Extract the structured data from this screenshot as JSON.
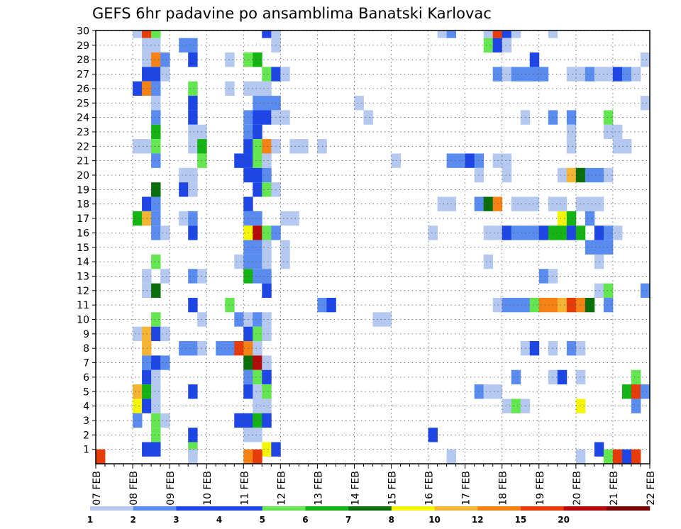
{
  "chart_data": {
    "type": "heatmap",
    "title": "GEFS 6hr padavine po ansamblima Banatski Karlovac",
    "x_tick_labels": [
      "07 FEB",
      "08 FEB",
      "09 FEB",
      "10 FEB",
      "11 FEB",
      "12 FEB",
      "13 FEB",
      "14 FEB",
      "15 FEB",
      "16 FEB",
      "17 FEB",
      "18 FEB",
      "19 FEB",
      "20 FEB",
      "21 FEB",
      "22 FEB"
    ],
    "y_tick_labels": [
      "1",
      "2",
      "3",
      "4",
      "5",
      "6",
      "7",
      "8",
      "9",
      "10",
      "11",
      "12",
      "13",
      "14",
      "15",
      "16",
      "17",
      "18",
      "19",
      "20",
      "21",
      "22",
      "23",
      "24",
      "25",
      "26",
      "27",
      "28",
      "29",
      "30"
    ],
    "x_steps_per_day": 4,
    "x_total_steps": 60,
    "y_rows": 30,
    "grid": true,
    "legend_position": "bottom",
    "colorbar": {
      "labels": [
        "1",
        "2",
        "3",
        "4",
        "5",
        "6",
        "7",
        "8",
        "10",
        "12",
        "15",
        "20"
      ],
      "colors": [
        "#b4c8f0",
        "#5a8cf0",
        "#1e46e6",
        "#1e46e6",
        "#64e650",
        "#14b414",
        "#0a6e0a",
        "#f5f50a",
        "#f5b432",
        "#f58214",
        "#e63c0a",
        "#b40a0a",
        "#780000"
      ]
    },
    "cells": [
      [
        4,
        30,
        1
      ],
      [
        5,
        30,
        15
      ],
      [
        6,
        30,
        5
      ],
      [
        18,
        30,
        3
      ],
      [
        19,
        30,
        1
      ],
      [
        37,
        30,
        1
      ],
      [
        38,
        30,
        2
      ],
      [
        42,
        30,
        1
      ],
      [
        43,
        30,
        15
      ],
      [
        44,
        30,
        3
      ],
      [
        45,
        30,
        1
      ],
      [
        49,
        30,
        1
      ],
      [
        5,
        29,
        1
      ],
      [
        6,
        29,
        1
      ],
      [
        9,
        29,
        2
      ],
      [
        10,
        29,
        2
      ],
      [
        19,
        29,
        1
      ],
      [
        42,
        29,
        5
      ],
      [
        43,
        29,
        3
      ],
      [
        44,
        29,
        1
      ],
      [
        5,
        28,
        1
      ],
      [
        6,
        28,
        12
      ],
      [
        7,
        28,
        2
      ],
      [
        10,
        28,
        3
      ],
      [
        14,
        28,
        1
      ],
      [
        16,
        28,
        5
      ],
      [
        17,
        28,
        6
      ],
      [
        47,
        28,
        3
      ],
      [
        59,
        28,
        1
      ],
      [
        5,
        27,
        3
      ],
      [
        6,
        27,
        3
      ],
      [
        7,
        27,
        1
      ],
      [
        18,
        27,
        5
      ],
      [
        19,
        27,
        3
      ],
      [
        20,
        27,
        1
      ],
      [
        43,
        27,
        2
      ],
      [
        44,
        27,
        1
      ],
      [
        45,
        27,
        2
      ],
      [
        46,
        27,
        2
      ],
      [
        47,
        27,
        2
      ],
      [
        48,
        27,
        2
      ],
      [
        51,
        27,
        1
      ],
      [
        52,
        27,
        1
      ],
      [
        53,
        27,
        2
      ],
      [
        54,
        27,
        1
      ],
      [
        55,
        27,
        1
      ],
      [
        56,
        27,
        3
      ],
      [
        57,
        27,
        2
      ],
      [
        58,
        27,
        1
      ],
      [
        4,
        26,
        3
      ],
      [
        5,
        26,
        12
      ],
      [
        6,
        26,
        2
      ],
      [
        10,
        26,
        5
      ],
      [
        14,
        26,
        1
      ],
      [
        16,
        26,
        1
      ],
      [
        17,
        26,
        1
      ],
      [
        18,
        26,
        1
      ],
      [
        6,
        25,
        1
      ],
      [
        10,
        25,
        3
      ],
      [
        17,
        25,
        2
      ],
      [
        18,
        25,
        2
      ],
      [
        19,
        25,
        2
      ],
      [
        28,
        25,
        1
      ],
      [
        59,
        25,
        1
      ],
      [
        6,
        24,
        2
      ],
      [
        10,
        24,
        3
      ],
      [
        16,
        24,
        2
      ],
      [
        17,
        24,
        3
      ],
      [
        18,
        24,
        3
      ],
      [
        19,
        24,
        1
      ],
      [
        20,
        24,
        1
      ],
      [
        29,
        24,
        1
      ],
      [
        46,
        24,
        1
      ],
      [
        49,
        24,
        2
      ],
      [
        51,
        24,
        2
      ],
      [
        55,
        24,
        5
      ],
      [
        6,
        23,
        6
      ],
      [
        10,
        23,
        1
      ],
      [
        11,
        23,
        1
      ],
      [
        16,
        23,
        2
      ],
      [
        17,
        23,
        3
      ],
      [
        51,
        23,
        1
      ],
      [
        55,
        23,
        1
      ],
      [
        56,
        23,
        1
      ],
      [
        4,
        22,
        1
      ],
      [
        5,
        22,
        1
      ],
      [
        6,
        22,
        5
      ],
      [
        10,
        22,
        1
      ],
      [
        11,
        22,
        6
      ],
      [
        16,
        22,
        3
      ],
      [
        17,
        22,
        5
      ],
      [
        18,
        22,
        12
      ],
      [
        19,
        22,
        1
      ],
      [
        21,
        22,
        1
      ],
      [
        22,
        22,
        1
      ],
      [
        24,
        22,
        1
      ],
      [
        51,
        22,
        1
      ],
      [
        56,
        22,
        1
      ],
      [
        57,
        22,
        1
      ],
      [
        6,
        21,
        2
      ],
      [
        11,
        21,
        5
      ],
      [
        15,
        21,
        3
      ],
      [
        16,
        21,
        3
      ],
      [
        17,
        21,
        5
      ],
      [
        18,
        21,
        1
      ],
      [
        32,
        21,
        1
      ],
      [
        38,
        21,
        2
      ],
      [
        39,
        21,
        2
      ],
      [
        40,
        21,
        3
      ],
      [
        41,
        21,
        2
      ],
      [
        43,
        21,
        1
      ],
      [
        44,
        21,
        1
      ],
      [
        9,
        20,
        1
      ],
      [
        10,
        20,
        1
      ],
      [
        16,
        20,
        3
      ],
      [
        17,
        20,
        3
      ],
      [
        18,
        20,
        2
      ],
      [
        41,
        20,
        1
      ],
      [
        44,
        20,
        1
      ],
      [
        50,
        20,
        1
      ],
      [
        51,
        20,
        11
      ],
      [
        52,
        20,
        7
      ],
      [
        53,
        20,
        2
      ],
      [
        54,
        20,
        2
      ],
      [
        55,
        20,
        1
      ],
      [
        6,
        19,
        7
      ],
      [
        9,
        19,
        3
      ],
      [
        10,
        19,
        1
      ],
      [
        17,
        19,
        3
      ],
      [
        18,
        19,
        5
      ],
      [
        19,
        19,
        1
      ],
      [
        5,
        18,
        3
      ],
      [
        6,
        18,
        2
      ],
      [
        16,
        18,
        3
      ],
      [
        37,
        18,
        1
      ],
      [
        38,
        18,
        1
      ],
      [
        41,
        18,
        2
      ],
      [
        42,
        18,
        7
      ],
      [
        43,
        18,
        12
      ],
      [
        45,
        18,
        1
      ],
      [
        46,
        18,
        1
      ],
      [
        47,
        18,
        1
      ],
      [
        49,
        18,
        1
      ],
      [
        50,
        18,
        1
      ],
      [
        52,
        18,
        1
      ],
      [
        53,
        18,
        1
      ],
      [
        54,
        18,
        1
      ],
      [
        4,
        17,
        6
      ],
      [
        5,
        17,
        11
      ],
      [
        6,
        17,
        2
      ],
      [
        9,
        17,
        1
      ],
      [
        10,
        17,
        2
      ],
      [
        16,
        17,
        2
      ],
      [
        17,
        17,
        2
      ],
      [
        20,
        17,
        1
      ],
      [
        21,
        17,
        1
      ],
      [
        50,
        17,
        9
      ],
      [
        51,
        17,
        6
      ],
      [
        53,
        17,
        2
      ],
      [
        6,
        16,
        2
      ],
      [
        7,
        16,
        1
      ],
      [
        10,
        16,
        3
      ],
      [
        16,
        16,
        9
      ],
      [
        17,
        16,
        20
      ],
      [
        18,
        16,
        5
      ],
      [
        19,
        16,
        2
      ],
      [
        36,
        16,
        1
      ],
      [
        42,
        16,
        1
      ],
      [
        43,
        16,
        1
      ],
      [
        44,
        16,
        3
      ],
      [
        45,
        16,
        2
      ],
      [
        46,
        16,
        2
      ],
      [
        47,
        16,
        2
      ],
      [
        48,
        16,
        3
      ],
      [
        49,
        16,
        6
      ],
      [
        50,
        16,
        6
      ],
      [
        51,
        16,
        3
      ],
      [
        52,
        16,
        6
      ],
      [
        54,
        16,
        3
      ],
      [
        55,
        16,
        2
      ],
      [
        56,
        16,
        1
      ],
      [
        16,
        15,
        2
      ],
      [
        17,
        15,
        2
      ],
      [
        18,
        15,
        1
      ],
      [
        20,
        15,
        1
      ],
      [
        53,
        15,
        2
      ],
      [
        54,
        15,
        2
      ],
      [
        55,
        15,
        2
      ],
      [
        6,
        14,
        5
      ],
      [
        15,
        14,
        1
      ],
      [
        16,
        14,
        2
      ],
      [
        17,
        14,
        2
      ],
      [
        18,
        14,
        1
      ],
      [
        20,
        14,
        1
      ],
      [
        42,
        14,
        1
      ],
      [
        54,
        14,
        1
      ],
      [
        5,
        13,
        1
      ],
      [
        7,
        13,
        1
      ],
      [
        10,
        13,
        2
      ],
      [
        11,
        13,
        1
      ],
      [
        16,
        13,
        6
      ],
      [
        17,
        13,
        2
      ],
      [
        18,
        13,
        2
      ],
      [
        48,
        13,
        2
      ],
      [
        49,
        13,
        1
      ],
      [
        5,
        12,
        1
      ],
      [
        6,
        12,
        7
      ],
      [
        18,
        12,
        3
      ],
      [
        54,
        12,
        1
      ],
      [
        55,
        12,
        5
      ],
      [
        59,
        12,
        2
      ],
      [
        10,
        11,
        3
      ],
      [
        14,
        11,
        5
      ],
      [
        24,
        11,
        2
      ],
      [
        25,
        11,
        3
      ],
      [
        43,
        11,
        1
      ],
      [
        44,
        11,
        2
      ],
      [
        45,
        11,
        2
      ],
      [
        46,
        11,
        2
      ],
      [
        47,
        11,
        5
      ],
      [
        48,
        11,
        12
      ],
      [
        49,
        11,
        12
      ],
      [
        50,
        11,
        11
      ],
      [
        51,
        11,
        15
      ],
      [
        52,
        11,
        12
      ],
      [
        53,
        11,
        7
      ],
      [
        55,
        11,
        2
      ],
      [
        6,
        10,
        5
      ],
      [
        11,
        10,
        1
      ],
      [
        15,
        10,
        2
      ],
      [
        16,
        10,
        1
      ],
      [
        17,
        10,
        2
      ],
      [
        18,
        10,
        1
      ],
      [
        30,
        10,
        1
      ],
      [
        31,
        10,
        1
      ],
      [
        4,
        9,
        1
      ],
      [
        5,
        9,
        10
      ],
      [
        6,
        9,
        3
      ],
      [
        7,
        9,
        1
      ],
      [
        16,
        9,
        3
      ],
      [
        17,
        9,
        5
      ],
      [
        18,
        9,
        1
      ],
      [
        5,
        8,
        10
      ],
      [
        9,
        8,
        2
      ],
      [
        10,
        8,
        2
      ],
      [
        11,
        8,
        1
      ],
      [
        13,
        8,
        2
      ],
      [
        14,
        8,
        2
      ],
      [
        15,
        8,
        15
      ],
      [
        16,
        8,
        12
      ],
      [
        17,
        8,
        1
      ],
      [
        46,
        8,
        1
      ],
      [
        47,
        8,
        3
      ],
      [
        49,
        8,
        1
      ],
      [
        51,
        8,
        2
      ],
      [
        52,
        8,
        1
      ],
      [
        5,
        7,
        2
      ],
      [
        6,
        7,
        3
      ],
      [
        7,
        7,
        2
      ],
      [
        16,
        7,
        7
      ],
      [
        17,
        7,
        20
      ],
      [
        18,
        7,
        1
      ],
      [
        5,
        6,
        3
      ],
      [
        6,
        6,
        1
      ],
      [
        16,
        6,
        2
      ],
      [
        17,
        6,
        5
      ],
      [
        18,
        6,
        3
      ],
      [
        45,
        6,
        2
      ],
      [
        49,
        6,
        1
      ],
      [
        50,
        6,
        3
      ],
      [
        52,
        6,
        1
      ],
      [
        58,
        6,
        5
      ],
      [
        4,
        5,
        10
      ],
      [
        5,
        5,
        6
      ],
      [
        6,
        5,
        1
      ],
      [
        10,
        5,
        3
      ],
      [
        16,
        5,
        3
      ],
      [
        17,
        5,
        1
      ],
      [
        18,
        5,
        5
      ],
      [
        41,
        5,
        2
      ],
      [
        42,
        5,
        1
      ],
      [
        43,
        5,
        1
      ],
      [
        57,
        5,
        6
      ],
      [
        58,
        5,
        15
      ],
      [
        59,
        5,
        2
      ],
      [
        4,
        4,
        8
      ],
      [
        5,
        4,
        3
      ],
      [
        6,
        4,
        1
      ],
      [
        17,
        4,
        1
      ],
      [
        18,
        4,
        1
      ],
      [
        44,
        4,
        1
      ],
      [
        45,
        4,
        5
      ],
      [
        46,
        4,
        1
      ],
      [
        52,
        4,
        8
      ],
      [
        58,
        4,
        2
      ],
      [
        4,
        3,
        2
      ],
      [
        6,
        3,
        5
      ],
      [
        7,
        3,
        1
      ],
      [
        15,
        3,
        3
      ],
      [
        16,
        3,
        3
      ],
      [
        17,
        3,
        6
      ],
      [
        18,
        3,
        3
      ],
      [
        6,
        2,
        5
      ],
      [
        10,
        2,
        3
      ],
      [
        16,
        2,
        1
      ],
      [
        17,
        2,
        1
      ],
      [
        36,
        2,
        3
      ],
      [
        5,
        1,
        3
      ],
      [
        6,
        1,
        3
      ],
      [
        10,
        1,
        5
      ],
      [
        18,
        1,
        8
      ],
      [
        19,
        1,
        3
      ],
      [
        54,
        1,
        3
      ],
      [
        0,
        0.5,
        15
      ],
      [
        10,
        0.5,
        1
      ],
      [
        16,
        0.5,
        12
      ],
      [
        17,
        0.5,
        15
      ],
      [
        38,
        0.5,
        1
      ],
      [
        52,
        0.5,
        1
      ],
      [
        55,
        0.5,
        5
      ],
      [
        56,
        0.5,
        15
      ],
      [
        57,
        0.5,
        3
      ],
      [
        58,
        0.5,
        15
      ]
    ]
  }
}
